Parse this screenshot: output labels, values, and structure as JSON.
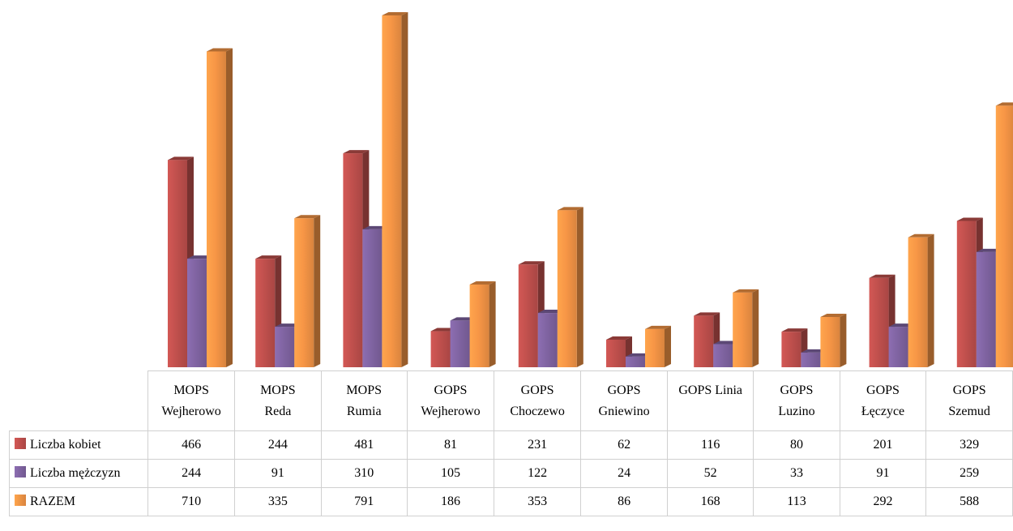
{
  "chart_data": {
    "type": "bar",
    "categories": [
      [
        "MOPS",
        "Wejherowo"
      ],
      [
        "MOPS",
        "Reda"
      ],
      [
        "MOPS",
        "Rumia"
      ],
      [
        "GOPS",
        "Wejherowo"
      ],
      [
        "GOPS",
        "Choczewo"
      ],
      [
        "GOPS",
        "Gniewino"
      ],
      [
        "GOPS Linia",
        ""
      ],
      [
        "GOPS",
        "Luzino"
      ],
      [
        "GOPS",
        "Łęczyce"
      ],
      [
        "GOPS",
        "Szemud"
      ]
    ],
    "series": [
      {
        "name": "Liczba kobiet",
        "color": "#c0504d",
        "values": [
          466,
          244,
          481,
          81,
          231,
          62,
          116,
          80,
          201,
          329
        ]
      },
      {
        "name": "Liczba mężczyzn",
        "color": "#8064a2",
        "values": [
          244,
          91,
          310,
          105,
          122,
          24,
          52,
          33,
          91,
          259
        ]
      },
      {
        "name": "RAZEM",
        "color": "#f79646",
        "values": [
          710,
          335,
          791,
          186,
          353,
          86,
          168,
          113,
          292,
          588
        ]
      }
    ],
    "ylim": [
      0,
      791
    ],
    "legend": "table",
    "grid": false
  }
}
